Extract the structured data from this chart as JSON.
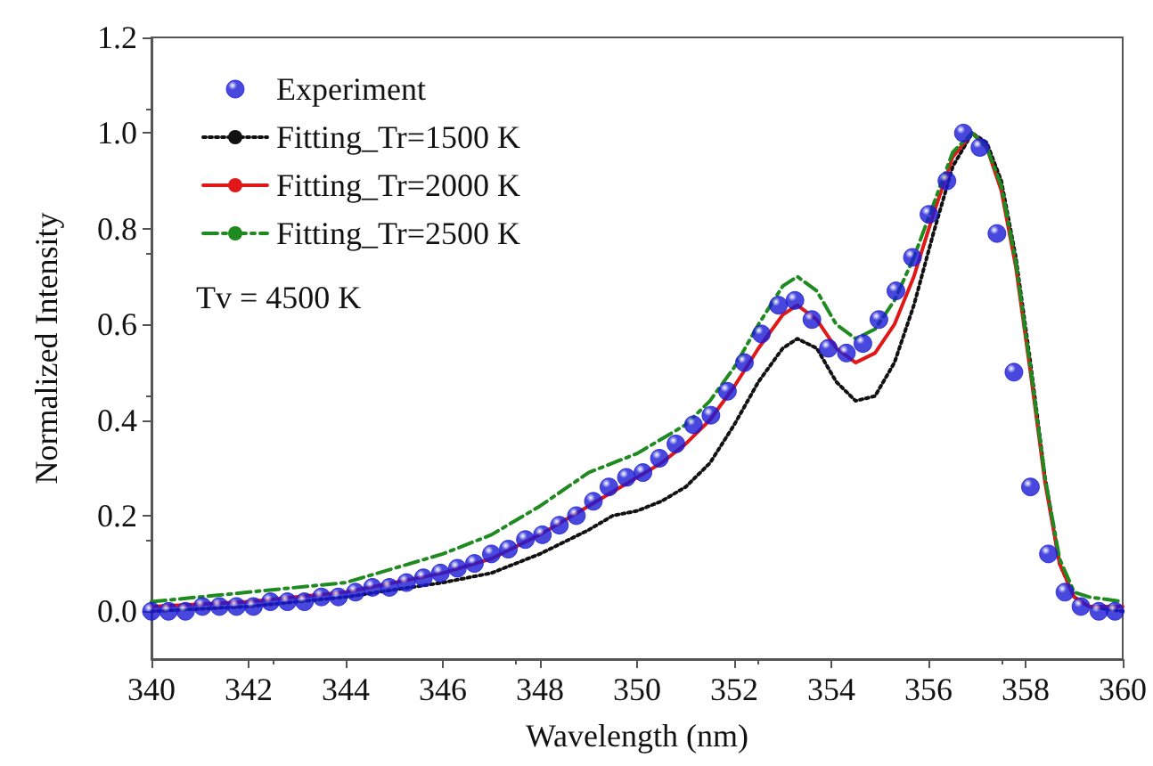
{
  "chart_data": {
    "type": "line",
    "xlabel": "Wavelength (nm)",
    "ylabel": "Normalized Intensity",
    "xlim": [
      340,
      360
    ],
    "xticks": [
      340,
      342,
      344,
      346,
      348,
      350,
      352,
      354,
      356,
      358,
      360
    ],
    "ylim": [
      -0.1,
      1.2
    ],
    "yticks": [
      {
        "value": 0,
        "label": "0.0"
      },
      {
        "value": 0.2,
        "label": "0.2"
      },
      {
        "value": 0.4,
        "label": "0.4"
      },
      {
        "value": 0.6,
        "label": "0.6"
      },
      {
        "value": 0.8,
        "label": "0.8"
      },
      {
        "value": 1.0,
        "label": "1.0"
      },
      {
        "value": 1.2,
        "label": "1.2"
      }
    ],
    "grid": false,
    "legend": "top left",
    "annotations": [
      "Tv = 4500 K"
    ],
    "series": [
      {
        "name": "Experiment",
        "type": "scatter",
        "marker": "circle",
        "color": "#1a1ad6",
        "x": [
          340.0,
          340.35,
          340.7,
          341.05,
          341.4,
          341.75,
          342.1,
          342.45,
          342.8,
          343.15,
          343.5,
          343.85,
          344.2,
          344.55,
          344.9,
          345.25,
          345.6,
          345.95,
          346.3,
          346.65,
          347.0,
          347.35,
          347.7,
          348.05,
          348.4,
          348.75,
          349.1,
          349.42,
          349.78,
          350.12,
          350.46,
          350.8,
          351.16,
          351.52,
          351.86,
          352.21,
          352.56,
          352.91,
          353.25,
          353.6,
          353.94,
          354.31,
          354.65,
          354.98,
          355.33,
          355.67,
          356.01,
          356.38,
          356.72,
          357.06,
          357.41,
          357.76,
          358.1,
          358.47,
          358.81,
          359.14,
          359.51,
          359.84
        ],
        "values": [
          0.0,
          0.0,
          0.0,
          0.01,
          0.01,
          0.01,
          0.01,
          0.02,
          0.02,
          0.02,
          0.03,
          0.03,
          0.04,
          0.05,
          0.05,
          0.06,
          0.07,
          0.08,
          0.09,
          0.1,
          0.12,
          0.13,
          0.15,
          0.16,
          0.18,
          0.2,
          0.23,
          0.26,
          0.28,
          0.29,
          0.32,
          0.35,
          0.39,
          0.41,
          0.46,
          0.52,
          0.58,
          0.64,
          0.65,
          0.61,
          0.55,
          0.54,
          0.56,
          0.61,
          0.67,
          0.74,
          0.83,
          0.9,
          1.0,
          0.97,
          0.79,
          0.5,
          0.26,
          0.12,
          0.04,
          0.01,
          0.0,
          0.0
        ]
      },
      {
        "name": "Fitting_Tr=1500 K",
        "type": "line",
        "marker": "none",
        "line_style": "dotted",
        "color": "#111111",
        "x": [
          340,
          342,
          344,
          346,
          347,
          348,
          349,
          349.5,
          350,
          350.5,
          351,
          351.5,
          352,
          352.5,
          353,
          353.3,
          353.7,
          354.1,
          354.5,
          354.9,
          355.3,
          355.7,
          356.1,
          356.5,
          356.9,
          357.2,
          357.5,
          357.8,
          358.1,
          358.4,
          358.7,
          359,
          359.3,
          360
        ],
        "values": [
          0.0,
          0.01,
          0.03,
          0.06,
          0.08,
          0.12,
          0.17,
          0.2,
          0.21,
          0.23,
          0.26,
          0.31,
          0.39,
          0.48,
          0.55,
          0.57,
          0.55,
          0.48,
          0.44,
          0.45,
          0.52,
          0.64,
          0.79,
          0.93,
          1.0,
          0.98,
          0.9,
          0.74,
          0.52,
          0.28,
          0.1,
          0.03,
          0.01,
          0.0
        ]
      },
      {
        "name": "Fitting_Tr=2000 K",
        "type": "line",
        "marker": "none",
        "line_style": "solid",
        "color": "#e01818",
        "x": [
          340,
          342,
          344,
          346,
          347,
          348,
          349,
          349.5,
          350,
          350.5,
          351,
          351.5,
          352,
          352.5,
          353,
          353.3,
          353.7,
          354.1,
          354.5,
          354.9,
          355.3,
          355.7,
          356.1,
          356.5,
          356.9,
          357.2,
          357.5,
          357.8,
          358.1,
          358.4,
          358.7,
          359,
          359.3,
          360
        ],
        "values": [
          0.01,
          0.02,
          0.04,
          0.08,
          0.11,
          0.16,
          0.22,
          0.25,
          0.28,
          0.31,
          0.35,
          0.4,
          0.47,
          0.55,
          0.62,
          0.64,
          0.61,
          0.55,
          0.52,
          0.54,
          0.6,
          0.7,
          0.83,
          0.95,
          1.0,
          0.97,
          0.88,
          0.72,
          0.5,
          0.27,
          0.1,
          0.03,
          0.01,
          0.01
        ]
      },
      {
        "name": "Fitting_Tr=2500 K",
        "type": "line",
        "marker": "none",
        "line_style": "dashdot",
        "color": "#1f8a1f",
        "x": [
          340,
          342,
          344,
          346,
          347,
          348,
          349,
          350,
          350.5,
          351,
          351.5,
          352,
          352.5,
          353,
          353.3,
          353.7,
          354.1,
          354.5,
          354.9,
          355.3,
          355.7,
          356.1,
          356.5,
          356.9,
          357.2,
          357.5,
          357.8,
          358.1,
          358.4,
          358.7,
          359,
          359.3,
          360
        ],
        "values": [
          0.02,
          0.04,
          0.06,
          0.12,
          0.16,
          0.22,
          0.29,
          0.33,
          0.36,
          0.39,
          0.44,
          0.51,
          0.6,
          0.68,
          0.7,
          0.67,
          0.6,
          0.57,
          0.59,
          0.65,
          0.74,
          0.85,
          0.96,
          1.0,
          0.97,
          0.89,
          0.73,
          0.51,
          0.28,
          0.11,
          0.04,
          0.03,
          0.02
        ]
      }
    ]
  }
}
